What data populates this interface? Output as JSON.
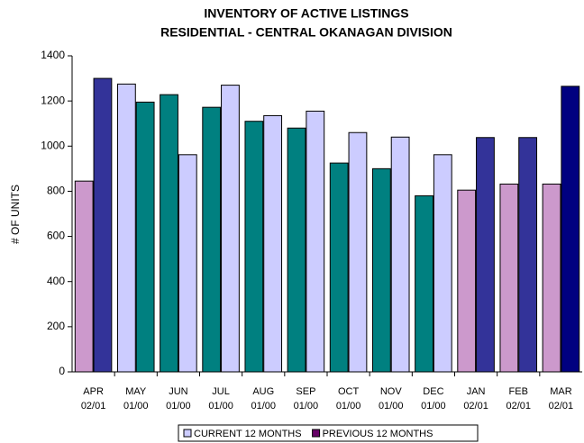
{
  "chart_data": {
    "type": "bar",
    "title": "INVENTORY OF ACTIVE LISTINGS",
    "subtitle": "RESIDENTIAL - CENTRAL OKANAGAN DIVISION",
    "y_label": "# OF UNITS",
    "categories": [
      [
        "APR",
        "02/01"
      ],
      [
        "MAY",
        "01/00"
      ],
      [
        "JUN",
        "01/00"
      ],
      [
        "JUL",
        "01/00"
      ],
      [
        "AUG",
        "01/00"
      ],
      [
        "SEP",
        "01/00"
      ],
      [
        "OCT",
        "01/00"
      ],
      [
        "NOV",
        "01/00"
      ],
      [
        "DEC",
        "01/00"
      ],
      [
        "JAN",
        "02/01"
      ],
      [
        "FEB",
        "02/01"
      ],
      [
        "MAR",
        "02/01"
      ]
    ],
    "series": [
      {
        "name": "CURRENT 12 MONTHS",
        "color": "#ccccff",
        "colors": [
          "#cc99cc",
          "#ccccff",
          "#008080",
          "#008080",
          "#008080",
          "#008080",
          "#008080",
          "#008080",
          "#008080",
          "#cc99cc",
          "#cc99cc",
          "#cc99cc"
        ],
        "values": [
          845,
          1275,
          1228,
          1172,
          1110,
          1080,
          925,
          900,
          780,
          805,
          832,
          832
        ]
      },
      {
        "name": "PREVIOUS 12 MONTHS",
        "color": "#660066",
        "colors": [
          "#333399",
          "#008080",
          "#ccccff",
          "#ccccff",
          "#ccccff",
          "#ccccff",
          "#ccccff",
          "#ccccff",
          "#ccccff",
          "#333399",
          "#333399",
          "#000080"
        ],
        "values": [
          1300,
          1195,
          962,
          1270,
          1135,
          1155,
          1060,
          1040,
          962,
          1038,
          1038,
          1265
        ]
      }
    ],
    "ylim": [
      0,
      1400
    ],
    "yticks": [
      0,
      200,
      400,
      600,
      800,
      1000,
      1200,
      1400
    ],
    "grid": false
  }
}
